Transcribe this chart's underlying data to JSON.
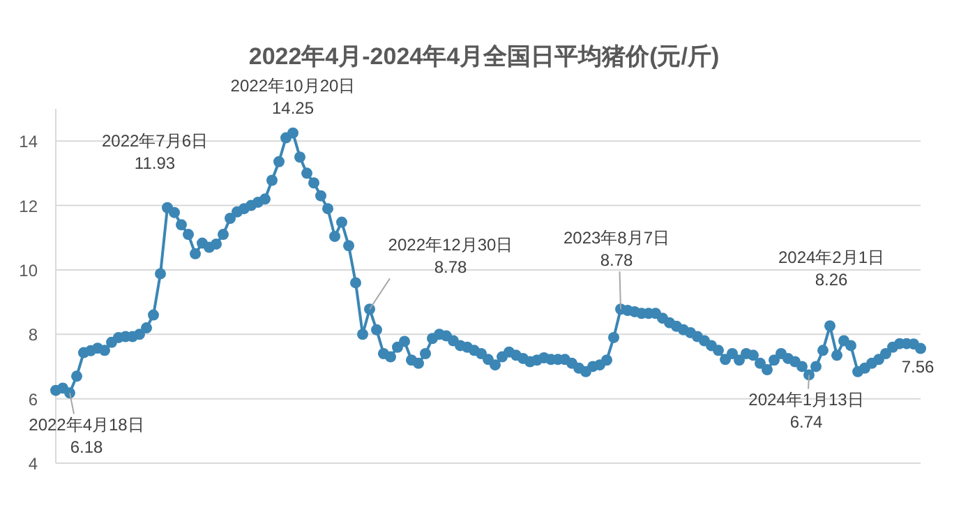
{
  "chart_data": {
    "type": "line",
    "title": "2022年4月-2024年4月全国日平均猪价(元/斤)",
    "categories": [
      null,
      null,
      null,
      null,
      null,
      null,
      null,
      null,
      null,
      null,
      null,
      null,
      null,
      null,
      null,
      null,
      null,
      null,
      null,
      null,
      null,
      null,
      null,
      null,
      null,
      null,
      null,
      null,
      null,
      null,
      null,
      null,
      null,
      null,
      null,
      null,
      null,
      null,
      null,
      null,
      null,
      null,
      null,
      null,
      null,
      null,
      null,
      null,
      null,
      null,
      null,
      null,
      null,
      null,
      null,
      null,
      null,
      null,
      null,
      null,
      null,
      null,
      null,
      null,
      null,
      null,
      null,
      null,
      null,
      null,
      null,
      null,
      null,
      null,
      null,
      null,
      null,
      null,
      null,
      null,
      null,
      null,
      null,
      null,
      null,
      null,
      null,
      null,
      null,
      null,
      null,
      null,
      null,
      null,
      null,
      null,
      null,
      null,
      null,
      null,
      null,
      null,
      null,
      null,
      null,
      null,
      null,
      null,
      null,
      null,
      null,
      null,
      null,
      null,
      null,
      null,
      null,
      null,
      null,
      null,
      null,
      null,
      null,
      null,
      null
    ],
    "values": [
      6.26,
      6.33,
      6.18,
      6.7,
      7.43,
      7.49,
      7.57,
      7.5,
      7.75,
      7.9,
      7.93,
      7.93,
      8.0,
      8.2,
      8.6,
      9.88,
      11.93,
      11.78,
      11.4,
      11.1,
      10.5,
      10.83,
      10.7,
      10.8,
      11.1,
      11.6,
      11.8,
      11.9,
      12.0,
      12.1,
      12.2,
      12.78,
      13.36,
      14.1,
      14.25,
      13.5,
      13.0,
      12.7,
      12.3,
      11.9,
      11.04,
      11.48,
      10.75,
      9.6,
      8.0,
      8.78,
      8.14,
      7.4,
      7.3,
      7.6,
      7.78,
      7.2,
      7.1,
      7.4,
      7.87,
      8.0,
      7.95,
      7.8,
      7.65,
      7.6,
      7.5,
      7.4,
      7.22,
      7.05,
      7.3,
      7.45,
      7.35,
      7.25,
      7.15,
      7.2,
      7.27,
      7.22,
      7.22,
      7.22,
      7.1,
      6.95,
      6.84,
      7.0,
      7.05,
      7.2,
      7.9,
      8.78,
      8.74,
      8.7,
      8.65,
      8.65,
      8.65,
      8.5,
      8.36,
      8.25,
      8.14,
      8.05,
      7.93,
      7.8,
      7.65,
      7.5,
      7.22,
      7.4,
      7.2,
      7.4,
      7.35,
      7.1,
      6.9,
      7.2,
      7.4,
      7.25,
      7.15,
      7.0,
      6.74,
      7.0,
      7.5,
      8.26,
      7.35,
      7.8,
      7.65,
      6.84,
      6.95,
      7.1,
      7.22,
      7.4,
      7.6,
      7.71,
      7.71,
      7.7,
      7.56
    ],
    "color": "#3b86b5",
    "marker": "circle",
    "line_style": "solid",
    "ylim": [
      4,
      15
    ],
    "yticks": [
      4,
      6,
      8,
      10,
      12,
      14
    ],
    "grid": "y",
    "tick_labels": "y",
    "annotations": [
      "2022年4月18日\n6.18",
      "2022年7月6日\n11.93",
      "2022年10月20日\n14.25",
      "2022年12月30日\n8.78",
      "2023年8月7日\n8.78",
      "2024年1月13日\n6.74",
      "2024年2月1日\n8.26",
      "7.56"
    ]
  }
}
